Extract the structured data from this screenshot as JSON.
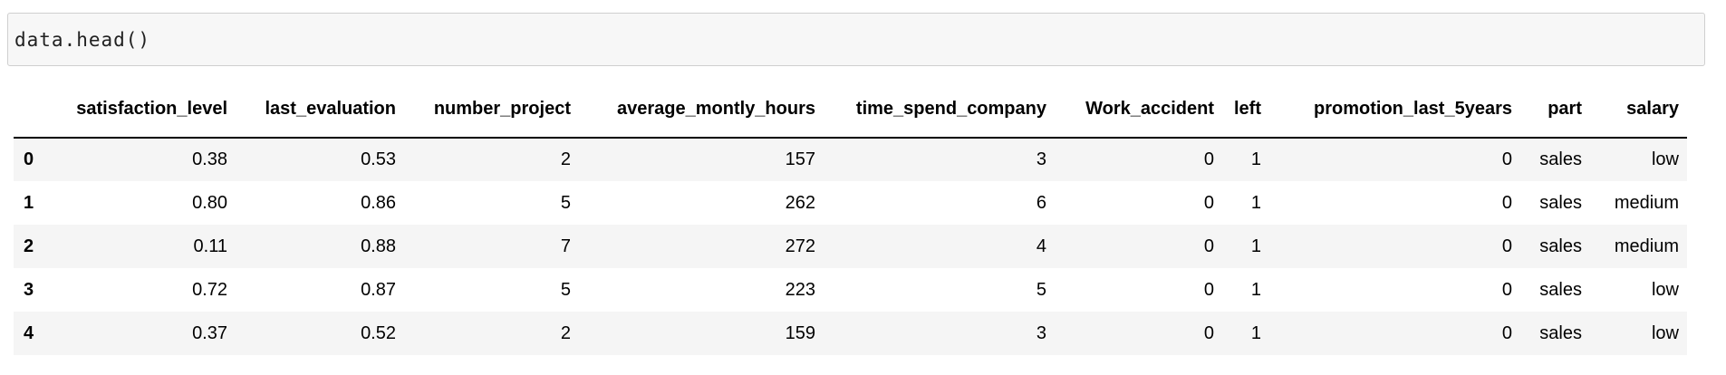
{
  "cell": {
    "code": "data.head()"
  },
  "table": {
    "columns": [
      "satisfaction_level",
      "last_evaluation",
      "number_project",
      "average_montly_hours",
      "time_spend_company",
      "Work_accident",
      "left",
      "promotion_last_5years",
      "part",
      "salary"
    ],
    "rows": [
      {
        "index": "0",
        "values": [
          "0.38",
          "0.53",
          "2",
          "157",
          "3",
          "0",
          "1",
          "0",
          "sales",
          "low"
        ]
      },
      {
        "index": "1",
        "values": [
          "0.80",
          "0.86",
          "5",
          "262",
          "6",
          "0",
          "1",
          "0",
          "sales",
          "medium"
        ]
      },
      {
        "index": "2",
        "values": [
          "0.11",
          "0.88",
          "7",
          "272",
          "4",
          "0",
          "1",
          "0",
          "sales",
          "medium"
        ]
      },
      {
        "index": "3",
        "values": [
          "0.72",
          "0.87",
          "5",
          "223",
          "5",
          "0",
          "1",
          "0",
          "sales",
          "low"
        ]
      },
      {
        "index": "4",
        "values": [
          "0.37",
          "0.52",
          "2",
          "159",
          "3",
          "0",
          "1",
          "0",
          "sales",
          "low"
        ]
      }
    ]
  },
  "colors": {
    "code_cell_background": "#f7f7f7",
    "code_cell_border": "#cfcfcf",
    "row_stripe": "#f5f5f5",
    "header_underline": "#000000",
    "text": "#000000"
  }
}
